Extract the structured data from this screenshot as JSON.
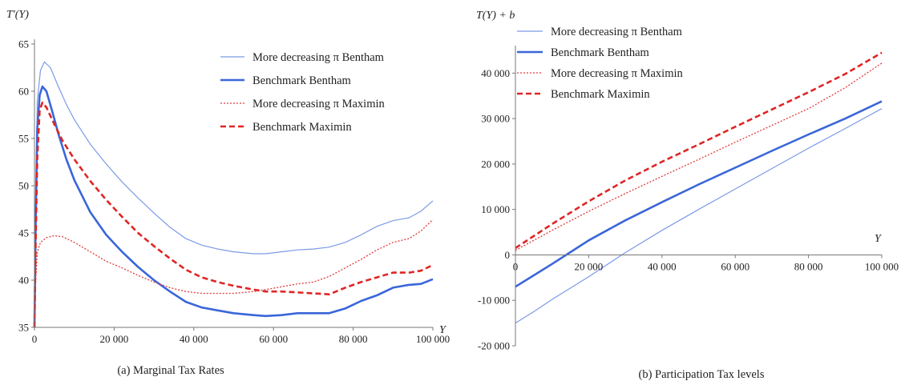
{
  "chart_data": [
    {
      "type": "line",
      "title": "(a) Marginal Tax Rates",
      "xlabel": "Y",
      "ylabel": "T'(Y)",
      "xlim": [
        0,
        100000
      ],
      "ylim": [
        35,
        65
      ],
      "xticks": [
        0,
        20000,
        40000,
        60000,
        80000,
        100000
      ],
      "xtick_labels": [
        "0",
        "20 000",
        "40 000",
        "60 000",
        "80 000",
        "100 000"
      ],
      "yticks": [
        35,
        40,
        45,
        50,
        55,
        60,
        65
      ],
      "ytick_labels": [
        "35",
        "40",
        "45",
        "50",
        "55",
        "60",
        "65"
      ],
      "grid": false,
      "legend_position": "top-right",
      "series": [
        {
          "name": "More decreasing π Bentham",
          "color": "#7b9be6",
          "style": "solid",
          "width": 1.2,
          "points": [
            [
              0,
              35
            ],
            [
              300,
              48
            ],
            [
              700,
              59
            ],
            [
              1500,
              62.2
            ],
            [
              2500,
              63.1
            ],
            [
              4000,
              62.5
            ],
            [
              6000,
              60.5
            ],
            [
              8000,
              58.6
            ],
            [
              10000,
              57
            ],
            [
              14000,
              54.4
            ],
            [
              18000,
              52.3
            ],
            [
              22000,
              50.4
            ],
            [
              26000,
              48.7
            ],
            [
              30000,
              47.1
            ],
            [
              34000,
              45.6
            ],
            [
              38000,
              44.4
            ],
            [
              42000,
              43.7
            ],
            [
              46000,
              43.3
            ],
            [
              50000,
              43
            ],
            [
              55000,
              42.8
            ],
            [
              58000,
              42.8
            ],
            [
              62000,
              43
            ],
            [
              66000,
              43.2
            ],
            [
              70000,
              43.3
            ],
            [
              74000,
              43.5
            ],
            [
              78000,
              44
            ],
            [
              82000,
              44.8
            ],
            [
              86000,
              45.7
            ],
            [
              90000,
              46.3
            ],
            [
              94000,
              46.6
            ],
            [
              97000,
              47.3
            ],
            [
              100000,
              48.4
            ]
          ]
        },
        {
          "name": "Benchmark Bentham",
          "color": "#3a66d9",
          "style": "solid",
          "width": 2.6,
          "points": [
            [
              0,
              35
            ],
            [
              300,
              46
            ],
            [
              700,
              56
            ],
            [
              1300,
              59.6
            ],
            [
              2000,
              60.5
            ],
            [
              3000,
              60
            ],
            [
              4500,
              57.8
            ],
            [
              6000,
              55.5
            ],
            [
              8000,
              52.8
            ],
            [
              10000,
              50.6
            ],
            [
              14000,
              47.2
            ],
            [
              18000,
              44.8
            ],
            [
              22000,
              43
            ],
            [
              26000,
              41.4
            ],
            [
              30000,
              40
            ],
            [
              34000,
              38.8
            ],
            [
              38000,
              37.7
            ],
            [
              42000,
              37.1
            ],
            [
              46000,
              36.8
            ],
            [
              50000,
              36.5
            ],
            [
              55000,
              36.3
            ],
            [
              58000,
              36.2
            ],
            [
              62000,
              36.3
            ],
            [
              66000,
              36.5
            ],
            [
              70000,
              36.5
            ],
            [
              74000,
              36.5
            ],
            [
              78000,
              37
            ],
            [
              82000,
              37.8
            ],
            [
              86000,
              38.4
            ],
            [
              90000,
              39.2
            ],
            [
              94000,
              39.5
            ],
            [
              97000,
              39.6
            ],
            [
              100000,
              40.1
            ]
          ]
        },
        {
          "name": "More decreasing π Maximin",
          "color": "#e03a3a",
          "style": "dotted",
          "width": 1.3,
          "points": [
            [
              0,
              35
            ],
            [
              300,
              40
            ],
            [
              700,
              43
            ],
            [
              1500,
              44
            ],
            [
              3000,
              44.5
            ],
            [
              5000,
              44.7
            ],
            [
              7000,
              44.6
            ],
            [
              10000,
              44
            ],
            [
              14000,
              43
            ],
            [
              18000,
              42
            ],
            [
              22000,
              41.3
            ],
            [
              26000,
              40.5
            ],
            [
              30000,
              39.8
            ],
            [
              34000,
              39.2
            ],
            [
              38000,
              38.8
            ],
            [
              42000,
              38.6
            ],
            [
              46000,
              38.6
            ],
            [
              50000,
              38.6
            ],
            [
              55000,
              38.8
            ],
            [
              58000,
              39
            ],
            [
              62000,
              39.3
            ],
            [
              66000,
              39.6
            ],
            [
              70000,
              39.8
            ],
            [
              74000,
              40.4
            ],
            [
              78000,
              41.3
            ],
            [
              82000,
              42.2
            ],
            [
              86000,
              43.2
            ],
            [
              90000,
              44
            ],
            [
              94000,
              44.4
            ],
            [
              97000,
              45.2
            ],
            [
              100000,
              46.4
            ]
          ]
        },
        {
          "name": "Benchmark Maximin",
          "color": "#e02525",
          "style": "dashed",
          "width": 2.6,
          "points": [
            [
              0,
              35
            ],
            [
              300,
              44
            ],
            [
              700,
              53
            ],
            [
              1300,
              58
            ],
            [
              2000,
              58.8
            ],
            [
              3000,
              58.3
            ],
            [
              5000,
              56.5
            ],
            [
              7000,
              54.8
            ],
            [
              10000,
              52.8
            ],
            [
              14000,
              50.5
            ],
            [
              18000,
              48.5
            ],
            [
              22000,
              46.7
            ],
            [
              26000,
              45
            ],
            [
              30000,
              43.6
            ],
            [
              34000,
              42.3
            ],
            [
              38000,
              41.1
            ],
            [
              42000,
              40.3
            ],
            [
              46000,
              39.8
            ],
            [
              50000,
              39.4
            ],
            [
              55000,
              39
            ],
            [
              58000,
              38.8
            ],
            [
              62000,
              38.8
            ],
            [
              66000,
              38.7
            ],
            [
              70000,
              38.6
            ],
            [
              74000,
              38.5
            ],
            [
              78000,
              39.2
            ],
            [
              82000,
              39.8
            ],
            [
              86000,
              40.3
            ],
            [
              90000,
              40.8
            ],
            [
              94000,
              40.8
            ],
            [
              97000,
              41
            ],
            [
              100000,
              41.6
            ]
          ]
        }
      ]
    },
    {
      "type": "line",
      "title": "(b) Participation Tax levels",
      "xlabel": "Y",
      "ylabel": "T(Y) + b",
      "xlim": [
        0,
        100000
      ],
      "ylim": [
        -20000,
        45000
      ],
      "xticks": [
        0,
        20000,
        40000,
        60000,
        80000,
        100000
      ],
      "xtick_labels": [
        "0",
        "20 000",
        "40 000",
        "60 000",
        "80 000",
        "100 000"
      ],
      "yticks": [
        -20000,
        -10000,
        0,
        10000,
        20000,
        30000,
        40000
      ],
      "ytick_labels": [
        "-20 000",
        "-10 000",
        "0",
        "10 000",
        "20 000",
        "30 000",
        "40 000"
      ],
      "grid": false,
      "legend_position": "top-left",
      "series": [
        {
          "name": "More decreasing π Bentham",
          "color": "#7b9be6",
          "style": "solid",
          "width": 1.2,
          "points": [
            [
              0,
              -15000
            ],
            [
              5000,
              -12500
            ],
            [
              10000,
              -9800
            ],
            [
              20000,
              -4800
            ],
            [
              30000,
              500
            ],
            [
              40000,
              5400
            ],
            [
              50000,
              10000
            ],
            [
              60000,
              14500
            ],
            [
              70000,
              19000
            ],
            [
              80000,
              23500
            ],
            [
              90000,
              27800
            ],
            [
              100000,
              32200
            ]
          ]
        },
        {
          "name": "Benchmark Bentham",
          "color": "#3a66d9",
          "style": "solid",
          "width": 2.6,
          "points": [
            [
              0,
              -7000
            ],
            [
              5000,
              -4500
            ],
            [
              10000,
              -2000
            ],
            [
              15000,
              600
            ],
            [
              20000,
              3200
            ],
            [
              30000,
              7600
            ],
            [
              40000,
              11600
            ],
            [
              50000,
              15500
            ],
            [
              60000,
              19200
            ],
            [
              70000,
              22900
            ],
            [
              80000,
              26500
            ],
            [
              90000,
              30000
            ],
            [
              100000,
              33800
            ]
          ]
        },
        {
          "name": "More decreasing π Maximin",
          "color": "#e03a3a",
          "style": "dotted",
          "width": 1.3,
          "points": [
            [
              0,
              1000
            ],
            [
              10000,
              5400
            ],
            [
              20000,
              9600
            ],
            [
              30000,
              13500
            ],
            [
              40000,
              17300
            ],
            [
              50000,
              21000
            ],
            [
              60000,
              24800
            ],
            [
              70000,
              28500
            ],
            [
              80000,
              32200
            ],
            [
              90000,
              36800
            ],
            [
              100000,
              42200
            ]
          ]
        },
        {
          "name": "Benchmark Maximin",
          "color": "#e02525",
          "style": "dashed",
          "width": 2.6,
          "points": [
            [
              0,
              1500
            ],
            [
              10000,
              6800
            ],
            [
              20000,
              11800
            ],
            [
              30000,
              16400
            ],
            [
              40000,
              20500
            ],
            [
              50000,
              24300
            ],
            [
              60000,
              28200
            ],
            [
              70000,
              32000
            ],
            [
              80000,
              35800
            ],
            [
              90000,
              39800
            ],
            [
              100000,
              44500
            ]
          ]
        }
      ]
    }
  ]
}
